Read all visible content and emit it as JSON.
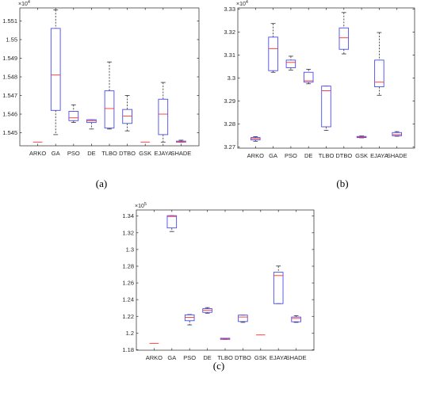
{
  "captions": [
    "(a)",
    "(b)",
    "(c)"
  ],
  "chart_data": [
    {
      "type": "box",
      "multiplier": "×10^4",
      "categories": [
        "ARKO",
        "GA",
        "PSO",
        "DE",
        "TLBO",
        "DTBO",
        "GSK",
        "EJAYA",
        "SHADE"
      ],
      "ylim": [
        1.5443,
        1.5517
      ],
      "yticks": [
        1.545,
        1.546,
        1.547,
        1.548,
        1.549,
        1.55,
        1.551
      ],
      "boxes": [
        {
          "min": 1.5445,
          "q1": 1.5445,
          "median": 1.5445,
          "q3": 1.5445,
          "max": 1.5445
        },
        {
          "min": 1.5449,
          "q1": 1.5462,
          "median": 1.5481,
          "q3": 1.5506,
          "max": 1.5516
        },
        {
          "min": 1.54555,
          "q1": 1.54565,
          "median": 1.5458,
          "q3": 1.54615,
          "max": 1.5465
        },
        {
          "min": 1.5452,
          "q1": 1.54555,
          "median": 1.54565,
          "q3": 1.5457,
          "max": 1.5457
        },
        {
          "min": 1.5452,
          "q1": 1.54525,
          "median": 1.5463,
          "q3": 1.54725,
          "max": 1.5488
        },
        {
          "min": 1.5451,
          "q1": 1.5455,
          "median": 1.5459,
          "q3": 1.54625,
          "max": 1.547
        },
        {
          "min": 1.5445,
          "q1": 1.5445,
          "median": 1.5445,
          "q3": 1.5445,
          "max": 1.5445
        },
        {
          "min": 1.5445,
          "q1": 1.5449,
          "median": 1.546,
          "q3": 1.5468,
          "max": 1.5477
        },
        {
          "min": 1.5445,
          "q1": 1.5445,
          "median": 1.5445,
          "q3": 1.54455,
          "max": 1.5446
        }
      ]
    },
    {
      "type": "box",
      "multiplier": "×10^4",
      "categories": [
        "ARKO",
        "GA",
        "PSO",
        "DE",
        "TLBO",
        "DTBO",
        "GSK",
        "EJAYA",
        "SHADE"
      ],
      "ylim": [
        3.2695,
        3.3305
      ],
      "yticks": [
        3.27,
        3.28,
        3.29,
        3.3,
        3.31,
        3.32,
        3.33
      ],
      "boxes": [
        {
          "min": 3.2725,
          "q1": 3.2731,
          "median": 3.2737,
          "q3": 3.2741,
          "max": 3.2745
        },
        {
          "min": 3.3025,
          "q1": 3.3032,
          "median": 3.3128,
          "q3": 3.3178,
          "max": 3.3237
        },
        {
          "min": 3.3035,
          "q1": 3.3045,
          "median": 3.3068,
          "q3": 3.3078,
          "max": 3.3095
        },
        {
          "min": 3.2975,
          "q1": 3.2982,
          "median": 3.2988,
          "q3": 3.3025,
          "max": 3.3038
        },
        {
          "min": 3.2772,
          "q1": 3.2788,
          "median": 3.2945,
          "q3": 3.2965,
          "max": 3.2965
        },
        {
          "min": 3.3105,
          "q1": 3.3125,
          "median": 3.3175,
          "q3": 3.3218,
          "max": 3.3285
        },
        {
          "min": 3.274,
          "q1": 3.2741,
          "median": 3.2743,
          "q3": 3.2746,
          "max": 3.2748
        },
        {
          "min": 3.2925,
          "q1": 3.2962,
          "median": 3.2982,
          "q3": 3.3078,
          "max": 3.3198
        },
        {
          "min": 3.2747,
          "q1": 3.2749,
          "median": 3.2754,
          "q3": 3.2763,
          "max": 3.2767
        }
      ]
    },
    {
      "type": "box",
      "multiplier": "×10^5",
      "categories": [
        "ARKO",
        "GA",
        "PSO",
        "DE",
        "TLBO",
        "DTBO",
        "GSK",
        "EJAYA",
        "SHADE"
      ],
      "ylim": [
        1.1795,
        1.3473
      ],
      "yticks": [
        1.18,
        1.2,
        1.22,
        1.24,
        1.26,
        1.28,
        1.3,
        1.32,
        1.34
      ],
      "boxes": [
        {
          "min": 1.1877,
          "q1": 1.1877,
          "median": 1.1877,
          "q3": 1.1877,
          "max": 1.1877
        },
        {
          "min": 1.3215,
          "q1": 1.3258,
          "median": 1.3395,
          "q3": 1.3405,
          "max": 1.3405
        },
        {
          "min": 1.2098,
          "q1": 1.2148,
          "median": 1.2188,
          "q3": 1.2218,
          "max": 1.2222
        },
        {
          "min": 1.2238,
          "q1": 1.2248,
          "median": 1.2272,
          "q3": 1.2292,
          "max": 1.2305
        },
        {
          "min": 1.1925,
          "q1": 1.1925,
          "median": 1.1928,
          "q3": 1.1938,
          "max": 1.1938
        },
        {
          "min": 1.2128,
          "q1": 1.2138,
          "median": 1.2192,
          "q3": 1.2215,
          "max": 1.2215
        },
        {
          "min": 1.1978,
          "q1": 1.1978,
          "median": 1.1978,
          "q3": 1.1978,
          "max": 1.1978
        },
        {
          "min": 1.2352,
          "q1": 1.2352,
          "median": 1.2688,
          "q3": 1.2728,
          "max": 1.2802
        },
        {
          "min": 1.2128,
          "q1": 1.2135,
          "median": 1.2175,
          "q3": 1.2192,
          "max": 1.2208
        }
      ]
    }
  ]
}
